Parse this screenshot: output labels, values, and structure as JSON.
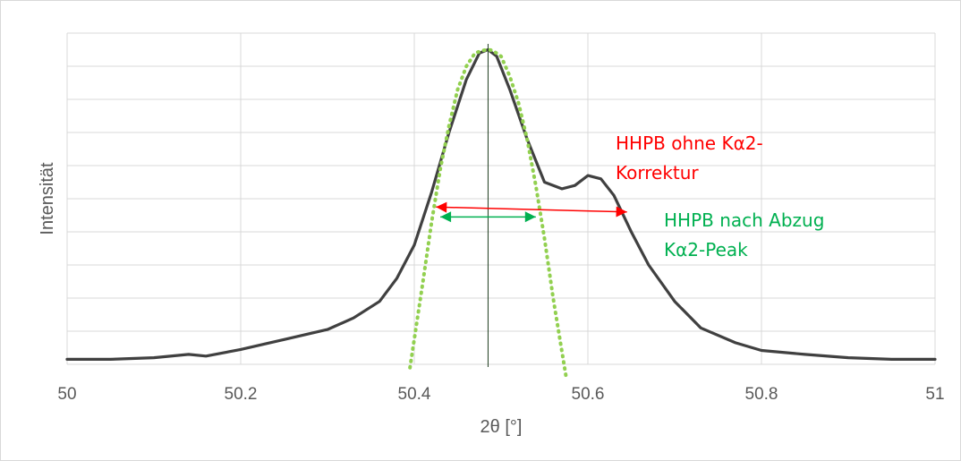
{
  "chart_data": {
    "type": "line",
    "title": "",
    "xlabel": "2θ [°]",
    "ylabel": "Intensität",
    "xlim": [
      50,
      51
    ],
    "ylim": [
      0,
      10
    ],
    "x_ticks": [
      "50",
      "50.2",
      "50.4",
      "50.6",
      "50.8",
      "51"
    ],
    "y_tick_labels_shown": false,
    "grid": true,
    "legend": "none",
    "peak_position": 50.485,
    "series": [
      {
        "style": "solid",
        "color": "#404040",
        "x": [
          50.0,
          50.05,
          50.1,
          50.14,
          50.16,
          50.2,
          50.25,
          50.3,
          50.33,
          50.36,
          50.38,
          50.4,
          50.42,
          50.44,
          50.46,
          50.475,
          50.485,
          50.495,
          50.51,
          50.53,
          50.55,
          50.57,
          50.585,
          50.6,
          50.615,
          50.63,
          50.65,
          50.67,
          50.7,
          50.73,
          50.77,
          50.8,
          50.85,
          50.9,
          50.95,
          51.0
        ],
        "y": [
          0.15,
          0.15,
          0.2,
          0.3,
          0.25,
          0.45,
          0.75,
          1.05,
          1.4,
          1.9,
          2.6,
          3.6,
          5.2,
          7.0,
          8.6,
          9.4,
          9.5,
          9.3,
          8.3,
          6.8,
          5.5,
          5.3,
          5.4,
          5.7,
          5.6,
          5.1,
          4.0,
          3.0,
          1.9,
          1.1,
          0.65,
          0.42,
          0.3,
          0.2,
          0.15,
          0.15
        ]
      },
      {
        "style": "dotted",
        "color": "#92d050",
        "x": [
          50.395,
          50.41,
          50.42,
          50.43,
          50.44,
          50.45,
          50.46,
          50.47,
          50.48,
          50.485,
          50.49,
          50.5,
          50.51,
          50.52,
          50.53,
          50.54,
          50.55,
          50.56,
          50.57,
          50.575
        ],
        "y": [
          -0.1,
          2.5,
          4.3,
          5.9,
          7.2,
          8.3,
          9.0,
          9.4,
          9.48,
          9.5,
          9.48,
          9.3,
          8.7,
          7.9,
          6.8,
          5.4,
          3.8,
          2.0,
          0.4,
          -0.4
        ]
      }
    ],
    "annotations": [
      {
        "text_lines": [
          "HHPB ohne Kα2-",
          "Korrektur"
        ],
        "color": "#ff0000",
        "arrow": {
          "x_from": 50.425,
          "x_to": 50.645,
          "y_from": 4.75,
          "y_to": 4.6
        }
      },
      {
        "text_lines": [
          "HHPB nach Abzug",
          "Kα2-Peak"
        ],
        "color": "#00b050",
        "arrow": {
          "x_from": 50.43,
          "x_to": 50.54,
          "y_from": 4.45,
          "y_to": 4.45
        }
      }
    ]
  }
}
